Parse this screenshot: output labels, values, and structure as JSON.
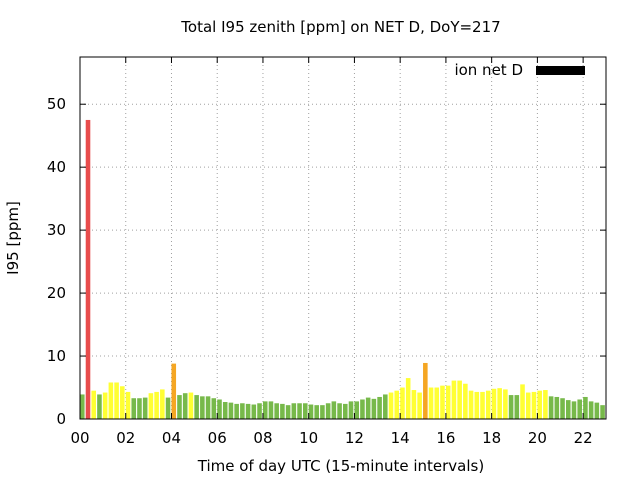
{
  "chart_data": {
    "type": "bar",
    "title": "Total I95 zenith [ppm] on NET D, DoY=217",
    "xlabel": "Time of day UTC (15-minute intervals)",
    "ylabel": "I95 [ppm]",
    "xlim": [
      0,
      23
    ],
    "ylim": [
      0,
      57.5
    ],
    "x_ticks": [
      {
        "value": 0,
        "label": "00"
      },
      {
        "value": 2,
        "label": "02"
      },
      {
        "value": 4,
        "label": "04"
      },
      {
        "value": 6,
        "label": "06"
      },
      {
        "value": 8,
        "label": "08"
      },
      {
        "value": 10,
        "label": "10"
      },
      {
        "value": 12,
        "label": "12"
      },
      {
        "value": 14,
        "label": "14"
      },
      {
        "value": 16,
        "label": "16"
      },
      {
        "value": 18,
        "label": "18"
      },
      {
        "value": 20,
        "label": "20"
      },
      {
        "value": 22,
        "label": "22"
      }
    ],
    "y_ticks": [
      {
        "value": 0,
        "label": "0"
      },
      {
        "value": 10,
        "label": "10"
      },
      {
        "value": 20,
        "label": "20"
      },
      {
        "value": 30,
        "label": "30"
      },
      {
        "value": 40,
        "label": "40"
      },
      {
        "value": 50,
        "label": "50"
      }
    ],
    "grid": true,
    "legend": {
      "position": "top-right",
      "label": "ion net D",
      "color": "#000000"
    },
    "interval_hours": 0.25,
    "bar_width_hours": 0.2,
    "colors": {
      "green": "#77b94a",
      "yellow": "#ffff33",
      "orange": "#f5a623",
      "red": "#e84c4c"
    },
    "series": [
      {
        "values": [
          3.9,
          47.5,
          4.5,
          3.9,
          4.2,
          5.8,
          5.8,
          5.2,
          4.3,
          3.3,
          3.3,
          3.4,
          4.1,
          4.3,
          4.7,
          3.4,
          8.8,
          3.8,
          4.1,
          4.2,
          3.8,
          3.6,
          3.6,
          3.3,
          3.1,
          2.7,
          2.6,
          2.4,
          2.5,
          2.4,
          2.3,
          2.5,
          2.8,
          2.8,
          2.5,
          2.4,
          2.2,
          2.5,
          2.5,
          2.5,
          2.3,
          2.2,
          2.2,
          2.5,
          2.8,
          2.5,
          2.4,
          2.8,
          2.8,
          3.1,
          3.4,
          3.2,
          3.5,
          3.9,
          4.2,
          4.5,
          5.0,
          6.5,
          4.6,
          4.2,
          8.9,
          5.0,
          5.0,
          5.3,
          5.3,
          6.1,
          6.1,
          5.6,
          4.5,
          4.3,
          4.3,
          4.5,
          4.8,
          4.9,
          4.7,
          3.8,
          3.8,
          5.5,
          4.2,
          4.3,
          4.5,
          4.6,
          3.6,
          3.5,
          3.3,
          3.0,
          2.8,
          3.1,
          3.5,
          2.8,
          2.6,
          2.2,
          2.8,
          2.5
        ],
        "colors": [
          "green",
          "red",
          "yellow",
          "green",
          "yellow",
          "yellow",
          "yellow",
          "yellow",
          "yellow",
          "green",
          "green",
          "green",
          "yellow",
          "yellow",
          "yellow",
          "green",
          "orange",
          "green",
          "green",
          "yellow",
          "green",
          "green",
          "green",
          "green",
          "green",
          "green",
          "green",
          "green",
          "green",
          "green",
          "green",
          "green",
          "green",
          "green",
          "green",
          "green",
          "green",
          "green",
          "green",
          "green",
          "green",
          "green",
          "green",
          "green",
          "green",
          "green",
          "green",
          "green",
          "green",
          "green",
          "green",
          "green",
          "green",
          "green",
          "yellow",
          "yellow",
          "yellow",
          "yellow",
          "yellow",
          "yellow",
          "orange",
          "yellow",
          "yellow",
          "yellow",
          "yellow",
          "yellow",
          "yellow",
          "yellow",
          "yellow",
          "yellow",
          "yellow",
          "yellow",
          "yellow",
          "yellow",
          "yellow",
          "green",
          "green",
          "yellow",
          "yellow",
          "yellow",
          "yellow",
          "yellow",
          "green",
          "green",
          "green",
          "green",
          "green",
          "green",
          "green",
          "green",
          "green",
          "green",
          "green",
          "green"
        ]
      }
    ]
  }
}
